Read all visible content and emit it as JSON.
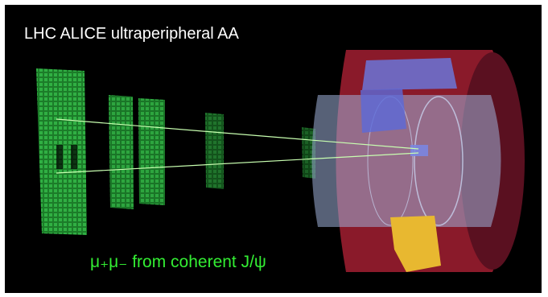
{
  "title": "LHC ALICE ultraperipheral AA",
  "caption": "μ₊μ₋ from coherent J/ψ"
}
